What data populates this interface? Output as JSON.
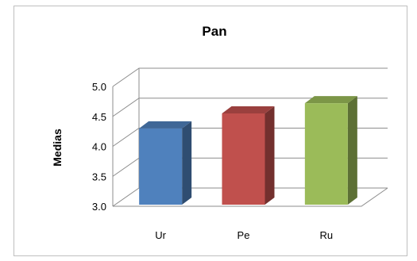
{
  "chart_data": {
    "type": "bar",
    "three_d": true,
    "title": "Pan",
    "xlabel": "",
    "ylabel": "Medias",
    "categories": [
      "Ur",
      "Pe",
      "Ru"
    ],
    "values": [
      4.3,
      4.55,
      4.72
    ],
    "ylim": [
      3.0,
      5.0
    ],
    "yticks": [
      "3.0",
      "3.5",
      "4.0",
      "4.5",
      "5.0"
    ],
    "grid": true,
    "legend": "none",
    "colors": [
      "#4f81bd",
      "#c0504d",
      "#9bbb59"
    ]
  }
}
